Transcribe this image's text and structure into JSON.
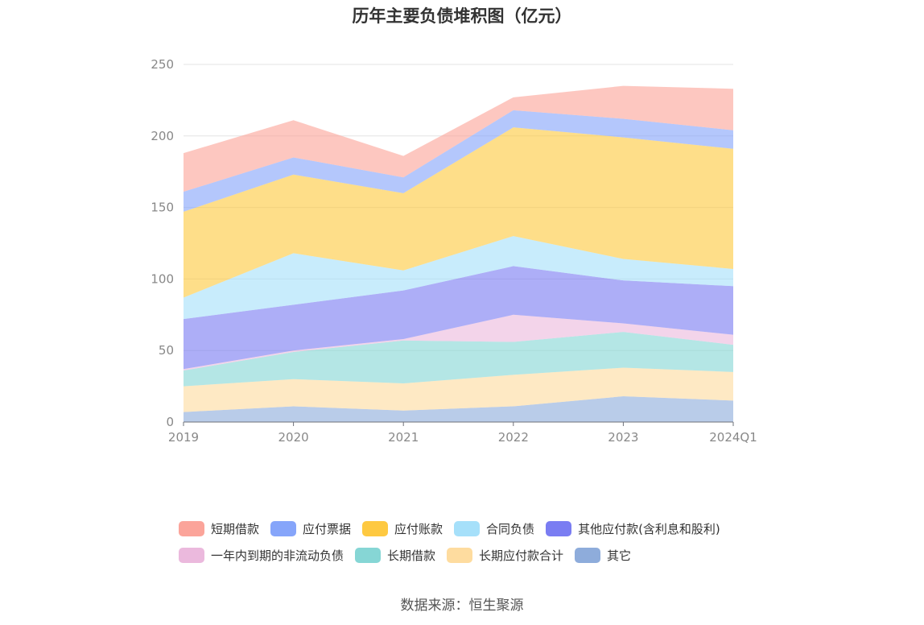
{
  "chart_data": {
    "type": "area",
    "stacked": true,
    "title": "历年主要负债堆积图（亿元）",
    "categories": [
      "2019",
      "2020",
      "2021",
      "2022",
      "2023",
      "2024Q1"
    ],
    "ylim": [
      0,
      250
    ],
    "yticks": [
      0,
      50,
      100,
      150,
      200,
      250
    ],
    "grid": true,
    "legend_position": "bottom",
    "series": [
      {
        "name": "其它",
        "color": "#8eacdb",
        "values": [
          7,
          11,
          8,
          11,
          18,
          15
        ]
      },
      {
        "name": "长期应付款合计",
        "color": "#fedc9f",
        "values": [
          18,
          19,
          19,
          22,
          20,
          20
        ]
      },
      {
        "name": "长期借款",
        "color": "#86d6d5",
        "values": [
          11,
          19,
          30,
          23,
          25,
          19
        ]
      },
      {
        "name": "一年内到期的非流动负债",
        "color": "#ebb9dd",
        "values": [
          1,
          1,
          1,
          19,
          6,
          7
        ]
      },
      {
        "name": "其他应付款(含利息和股利)",
        "color": "#7a7df2",
        "values": [
          35,
          32,
          34,
          34,
          30,
          34
        ]
      },
      {
        "name": "合同负债",
        "color": "#a6e0fa",
        "values": [
          15,
          36,
          14,
          21,
          15,
          12
        ]
      },
      {
        "name": "应付账款",
        "color": "#fec941",
        "values": [
          60,
          55,
          54,
          76,
          85,
          84
        ]
      },
      {
        "name": "应付票据",
        "color": "#86a5fa",
        "values": [
          14,
          12,
          11,
          12,
          13,
          13
        ]
      },
      {
        "name": "短期借款",
        "color": "#fba49a",
        "values": [
          27,
          26,
          15,
          9,
          23,
          29
        ]
      }
    ]
  },
  "legend": {
    "row1": [
      {
        "label": "短期借款",
        "color": "#fba49a"
      },
      {
        "label": "应付票据",
        "color": "#86a5fa"
      },
      {
        "label": "应付账款",
        "color": "#fec941"
      },
      {
        "label": "合同负债",
        "color": "#a6e0fa"
      },
      {
        "label": "其他应付款(含利息和股利)",
        "color": "#7a7df2"
      }
    ],
    "row2": [
      {
        "label": "一年内到期的非流动负债",
        "color": "#ebb9dd"
      },
      {
        "label": "长期借款",
        "color": "#86d6d5"
      },
      {
        "label": "长期应付款合计",
        "color": "#fedc9f"
      },
      {
        "label": "其它",
        "color": "#8eacdb"
      }
    ]
  },
  "source": "数据来源：恒生聚源"
}
